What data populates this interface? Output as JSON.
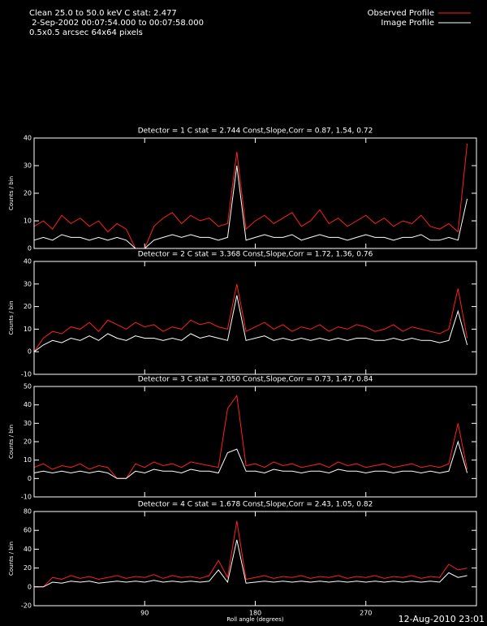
{
  "header": {
    "lines": [
      "Clean 25.0 to 50.0 keV C stat: 2.477",
      " 2-Sep-2002 00:07:54.000 to 00:07:58.000",
      "0.5x0.5 arcsec 64x64 pixels"
    ]
  },
  "footer": "12-Aug-2010 23:01",
  "chart_data": [
    {
      "type": "line",
      "title": "Detector = 1  C stat = 2.744  Const,Slope,Corr = 0.87, 1.54, 0.72",
      "y_label": "Counts / bin",
      "x": [
        0,
        7.5,
        15,
        22.5,
        30,
        37.5,
        45,
        52.5,
        60,
        67.5,
        75,
        82.5,
        90,
        97.5,
        105,
        112.5,
        120,
        127.5,
        135,
        142.5,
        150,
        157.5,
        165,
        172.5,
        180,
        187.5,
        195,
        202.5,
        210,
        217.5,
        225,
        232.5,
        240,
        247.5,
        255,
        262.5,
        270,
        277.5,
        285,
        292.5,
        300,
        307.5,
        315,
        322.5,
        330,
        337.5,
        345,
        352.5
      ],
      "xlim": [
        0,
        360
      ],
      "ylim": [
        0,
        40
      ],
      "yticks": [
        0,
        10,
        20,
        30,
        40
      ],
      "series": [
        {
          "name": "Observed Profile",
          "color": "#ff2020",
          "values": [
            8,
            10,
            7,
            12,
            9,
            11,
            8,
            10,
            6,
            9,
            7,
            0,
            0,
            8,
            11,
            13,
            9,
            12,
            10,
            11,
            8,
            9,
            35,
            7,
            10,
            12,
            9,
            11,
            13,
            8,
            10,
            14,
            9,
            11,
            8,
            10,
            12,
            9,
            11,
            8,
            10,
            9,
            12,
            8,
            7,
            9,
            6,
            38
          ]
        },
        {
          "name": "Image Profile",
          "color": "#ffffff",
          "values": [
            3,
            4,
            3,
            5,
            4,
            4,
            3,
            4,
            3,
            4,
            3,
            0,
            0,
            3,
            4,
            5,
            4,
            5,
            4,
            4,
            3,
            4,
            30,
            3,
            4,
            5,
            4,
            4,
            5,
            3,
            4,
            5,
            4,
            4,
            3,
            4,
            5,
            4,
            4,
            3,
            4,
            4,
            5,
            3,
            3,
            4,
            3,
            18
          ]
        }
      ]
    },
    {
      "type": "line",
      "title": "Detector = 2  C stat = 3.368  Const,Slope,Corr = 1.72, 1.36, 0.76",
      "y_label": "Counts / bin",
      "x": [
        0,
        7.5,
        15,
        22.5,
        30,
        37.5,
        45,
        52.5,
        60,
        67.5,
        75,
        82.5,
        90,
        97.5,
        105,
        112.5,
        120,
        127.5,
        135,
        142.5,
        150,
        157.5,
        165,
        172.5,
        180,
        187.5,
        195,
        202.5,
        210,
        217.5,
        225,
        232.5,
        240,
        247.5,
        255,
        262.5,
        270,
        277.5,
        285,
        292.5,
        300,
        307.5,
        315,
        322.5,
        330,
        337.5,
        345,
        352.5
      ],
      "xlim": [
        0,
        360
      ],
      "ylim": [
        -10,
        40
      ],
      "yticks": [
        -10,
        0,
        10,
        20,
        30,
        40
      ],
      "series": [
        {
          "color": "#ff2020",
          "values": [
            0,
            6,
            9,
            8,
            11,
            10,
            13,
            9,
            14,
            12,
            10,
            13,
            11,
            12,
            9,
            11,
            10,
            14,
            12,
            13,
            11,
            10,
            30,
            9,
            11,
            13,
            10,
            12,
            9,
            11,
            10,
            12,
            9,
            11,
            10,
            12,
            11,
            9,
            10,
            12,
            9,
            11,
            10,
            9,
            8,
            10,
            28,
            6
          ]
        },
        {
          "color": "#ffffff",
          "values": [
            0,
            3,
            5,
            4,
            6,
            5,
            7,
            5,
            8,
            6,
            5,
            7,
            6,
            6,
            5,
            6,
            5,
            8,
            6,
            7,
            6,
            5,
            25,
            5,
            6,
            7,
            5,
            6,
            5,
            6,
            5,
            6,
            5,
            6,
            5,
            6,
            6,
            5,
            5,
            6,
            5,
            6,
            5,
            5,
            4,
            5,
            18,
            3
          ]
        }
      ]
    },
    {
      "type": "line",
      "title": "Detector = 3  C stat = 2.050  Const,Slope,Corr = 0.73, 1.47, 0.84",
      "y_label": "Counts / bin",
      "x": [
        0,
        7.5,
        15,
        22.5,
        30,
        37.5,
        45,
        52.5,
        60,
        67.5,
        75,
        82.5,
        90,
        97.5,
        105,
        112.5,
        120,
        127.5,
        135,
        142.5,
        150,
        157.5,
        165,
        172.5,
        180,
        187.5,
        195,
        202.5,
        210,
        217.5,
        225,
        232.5,
        240,
        247.5,
        255,
        262.5,
        270,
        277.5,
        285,
        292.5,
        300,
        307.5,
        315,
        322.5,
        330,
        337.5,
        345,
        352.5
      ],
      "xlim": [
        0,
        360
      ],
      "ylim": [
        -10,
        50
      ],
      "yticks": [
        -10,
        0,
        10,
        20,
        30,
        40,
        50
      ],
      "series": [
        {
          "color": "#ff2020",
          "values": [
            6,
            8,
            5,
            7,
            6,
            8,
            5,
            7,
            6,
            0,
            0,
            8,
            6,
            9,
            7,
            8,
            6,
            9,
            8,
            7,
            6,
            38,
            45,
            7,
            8,
            6,
            9,
            7,
            8,
            6,
            7,
            8,
            6,
            9,
            7,
            8,
            6,
            7,
            8,
            6,
            7,
            8,
            6,
            7,
            6,
            8,
            30,
            5
          ]
        },
        {
          "color": "#ffffff",
          "values": [
            3,
            4,
            3,
            4,
            3,
            4,
            3,
            4,
            3,
            0,
            0,
            4,
            3,
            5,
            4,
            4,
            3,
            5,
            4,
            4,
            3,
            14,
            16,
            4,
            4,
            3,
            5,
            4,
            4,
            3,
            4,
            4,
            3,
            5,
            4,
            4,
            3,
            4,
            4,
            3,
            4,
            4,
            3,
            4,
            3,
            4,
            20,
            3
          ]
        }
      ]
    },
    {
      "type": "line",
      "title": "Detector = 4  C stat = 1.678  Const,Slope,Corr = 2.43, 1.05, 0.82",
      "y_label": "Counts / bin",
      "x_label": "Roll angle (degrees)",
      "x": [
        0,
        7.5,
        15,
        22.5,
        30,
        37.5,
        45,
        52.5,
        60,
        67.5,
        75,
        82.5,
        90,
        97.5,
        105,
        112.5,
        120,
        127.5,
        135,
        142.5,
        150,
        157.5,
        165,
        172.5,
        180,
        187.5,
        195,
        202.5,
        210,
        217.5,
        225,
        232.5,
        240,
        247.5,
        255,
        262.5,
        270,
        277.5,
        285,
        292.5,
        300,
        307.5,
        315,
        322.5,
        330,
        337.5,
        345,
        352.5
      ],
      "xlim": [
        0,
        360
      ],
      "xticks": [
        90,
        180,
        270
      ],
      "ylim": [
        -20,
        80
      ],
      "yticks": [
        -20,
        0,
        20,
        40,
        60,
        80
      ],
      "series": [
        {
          "color": "#ff2020",
          "values": [
            0,
            0,
            10,
            8,
            12,
            9,
            11,
            8,
            10,
            12,
            9,
            11,
            10,
            13,
            9,
            12,
            10,
            11,
            9,
            12,
            28,
            10,
            70,
            8,
            10,
            12,
            9,
            11,
            10,
            12,
            9,
            11,
            10,
            12,
            9,
            11,
            10,
            12,
            9,
            11,
            10,
            12,
            9,
            11,
            10,
            24,
            18,
            20
          ]
        },
        {
          "color": "#ffffff",
          "values": [
            0,
            0,
            5,
            4,
            6,
            5,
            6,
            4,
            5,
            6,
            5,
            6,
            5,
            7,
            5,
            6,
            5,
            6,
            5,
            6,
            18,
            5,
            50,
            4,
            5,
            6,
            5,
            6,
            5,
            6,
            5,
            6,
            5,
            6,
            5,
            6,
            5,
            6,
            5,
            6,
            5,
            6,
            5,
            6,
            5,
            15,
            10,
            12
          ]
        }
      ]
    }
  ]
}
